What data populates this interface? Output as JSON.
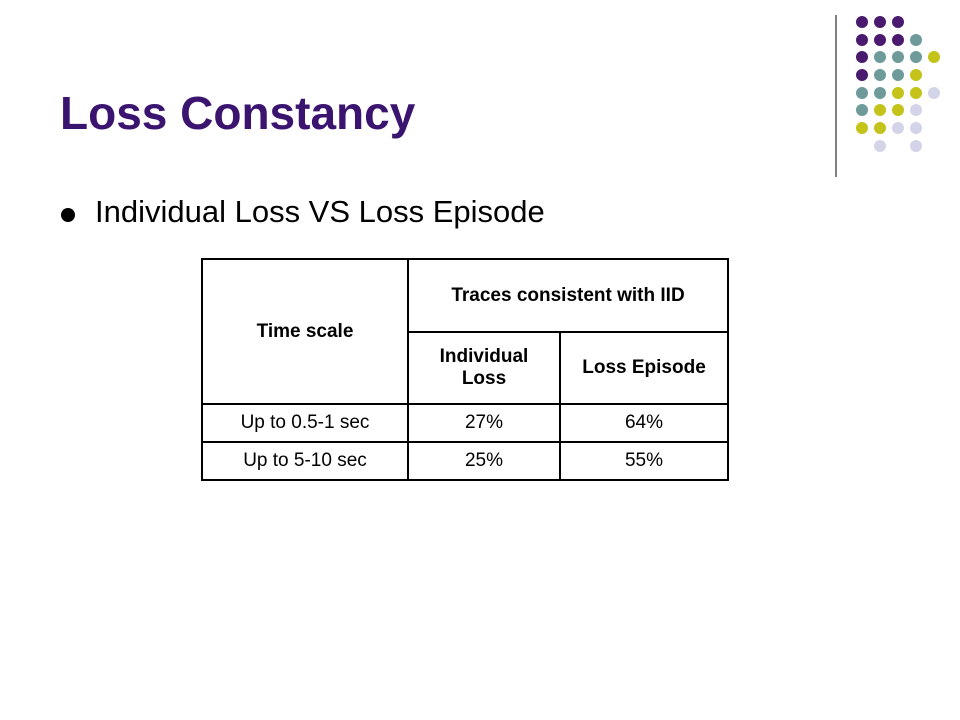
{
  "title": "Loss Constancy",
  "bullets": [
    "Individual Loss VS Loss Episode"
  ],
  "table": {
    "header": {
      "time_scale": "Time scale",
      "group": "Traces consistent with IID",
      "columns": [
        "Individual Loss",
        "Loss Episode"
      ]
    },
    "rows": [
      [
        "Up to 0.5-1 sec",
        "27%",
        "64%"
      ],
      [
        "Up to 5-10 sec",
        "25%",
        "55%"
      ]
    ]
  }
}
